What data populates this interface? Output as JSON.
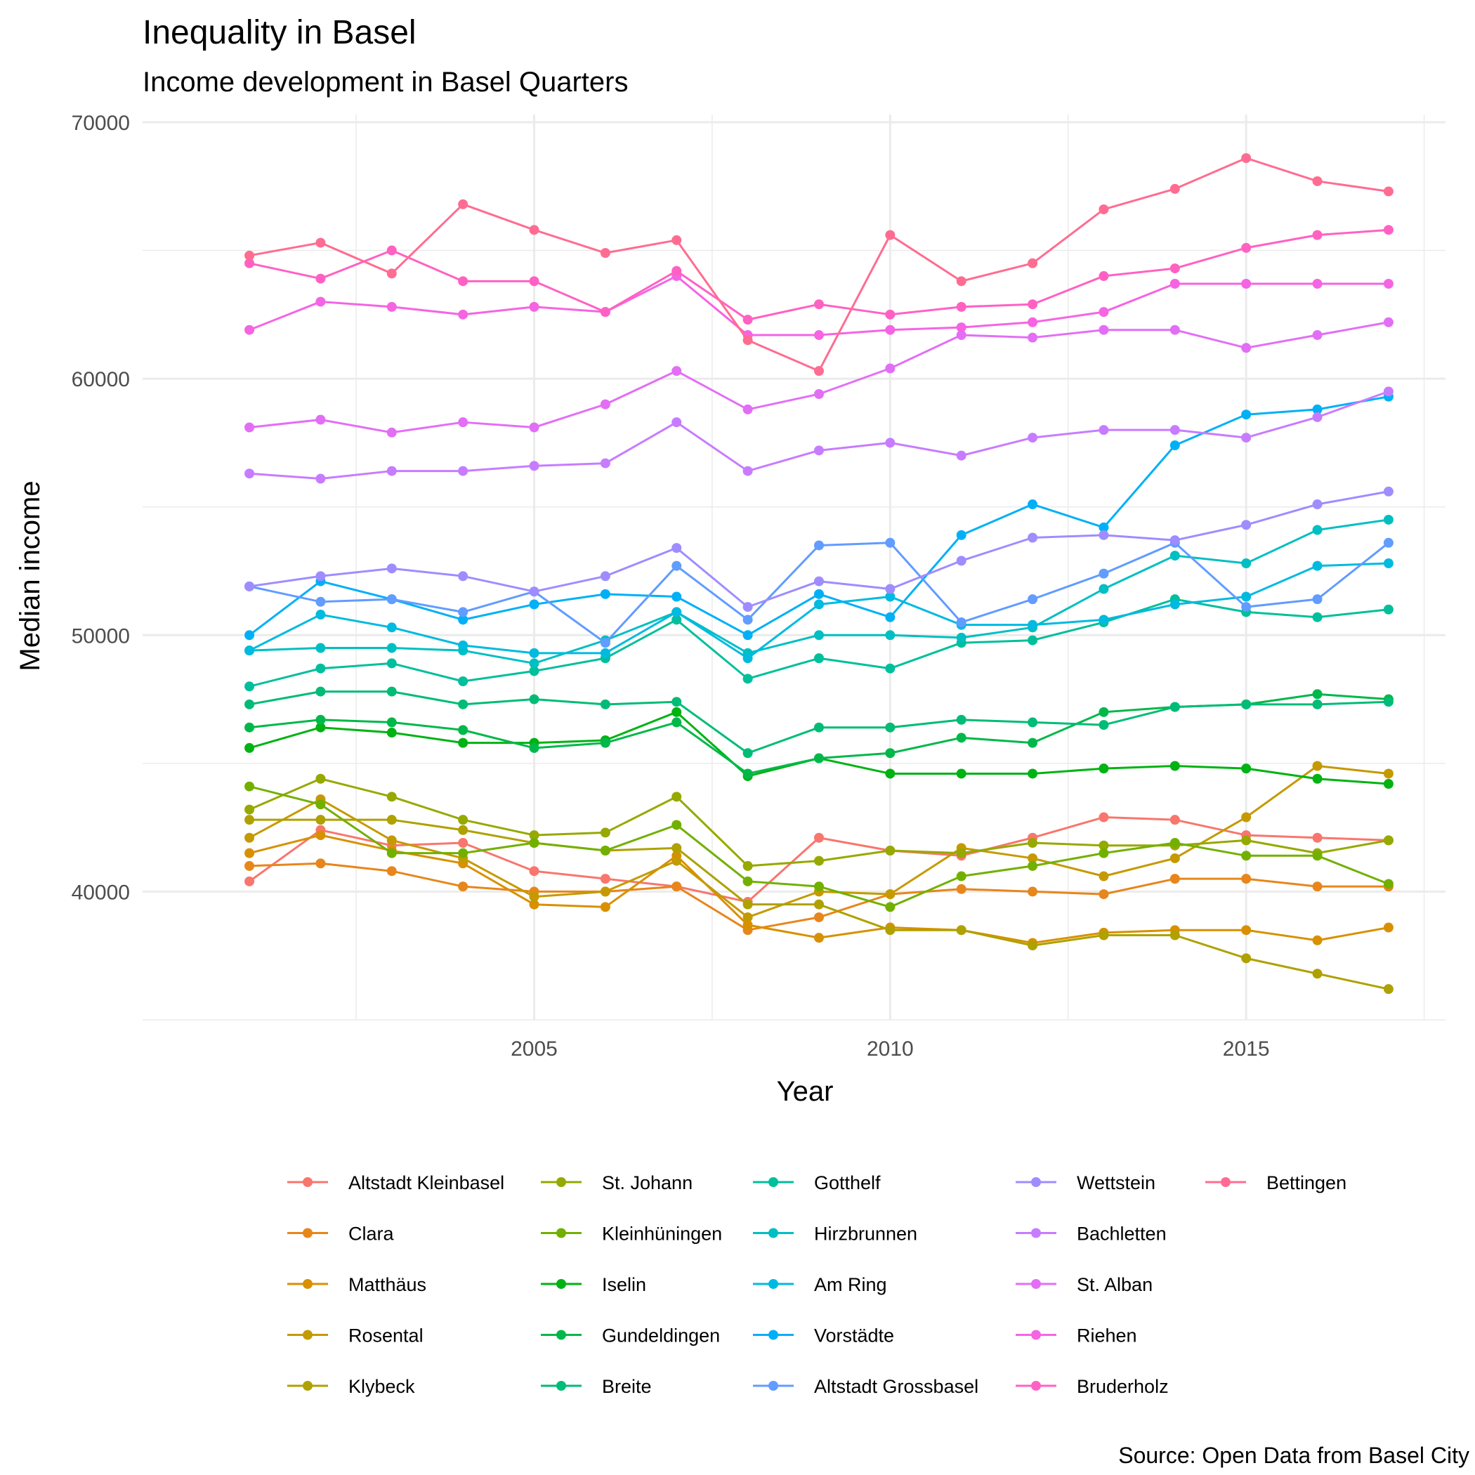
{
  "chart_data": {
    "type": "line",
    "title": "Inequality in Basel",
    "subtitle": "Income development in Basel Quarters",
    "xlabel": "Year",
    "ylabel": "Median income",
    "caption": "Source: Open Data from Basel City",
    "xlim": [
      1999.5,
      2017.8
    ],
    "ylim": [
      35000,
      70300
    ],
    "x_ticks": [
      2005,
      2010,
      2015
    ],
    "y_ticks": [
      40000,
      50000,
      60000,
      70000
    ],
    "grid": true,
    "legend_position": "bottom",
    "x": [
      2001,
      2002,
      2003,
      2004,
      2005,
      2006,
      2007,
      2008,
      2009,
      2010,
      2011,
      2012,
      2013,
      2014,
      2015,
      2016,
      2017
    ],
    "series": [
      {
        "name": "Altstadt Kleinbasel",
        "color": "#F8766D",
        "values": [
          40400,
          42400,
          41800,
          41900,
          40800,
          40500,
          40200,
          39600,
          42100,
          41600,
          41400,
          42100,
          42900,
          42800,
          42200,
          42100,
          42000
        ]
      },
      {
        "name": "Clara",
        "color": "#E7861B",
        "values": [
          41000,
          41100,
          40800,
          40200,
          40000,
          40000,
          40200,
          38500,
          39000,
          39900,
          40100,
          40000,
          39900,
          40500,
          40500,
          40200,
          40200
        ]
      },
      {
        "name": "Matthäus",
        "color": "#D89000",
        "values": [
          41500,
          42200,
          41600,
          41100,
          39500,
          39400,
          41400,
          38700,
          38200,
          38600,
          38500,
          38000,
          38400,
          38500,
          38500,
          38100,
          38600
        ]
      },
      {
        "name": "Rosental",
        "color": "#C49A00",
        "values": [
          42100,
          43600,
          42000,
          41300,
          39800,
          40000,
          41200,
          39000,
          40000,
          39900,
          41700,
          41300,
          40600,
          41300,
          42900,
          44900,
          44600
        ]
      },
      {
        "name": "Klybeck",
        "color": "#AFA100",
        "values": [
          42800,
          42800,
          42800,
          42400,
          41900,
          41600,
          41700,
          39500,
          39500,
          38500,
          38500,
          37900,
          38300,
          38300,
          37400,
          36800,
          36200
        ]
      },
      {
        "name": "St. Johann",
        "color": "#96A900",
        "values": [
          43200,
          44400,
          43700,
          42800,
          42200,
          42300,
          43700,
          41000,
          41200,
          41600,
          41500,
          41900,
          41800,
          41800,
          42000,
          41500,
          42000
        ]
      },
      {
        "name": "Kleinhüningen",
        "color": "#72B000",
        "values": [
          44100,
          43400,
          41500,
          41500,
          41900,
          41600,
          42600,
          40400,
          40200,
          39400,
          40600,
          41000,
          41500,
          41900,
          41400,
          41400,
          40300
        ]
      },
      {
        "name": "Iselin",
        "color": "#00B312",
        "values": [
          45600,
          46400,
          46200,
          45800,
          45800,
          45900,
          47000,
          44500,
          45200,
          44600,
          44600,
          44600,
          44800,
          44900,
          44800,
          44400,
          44200
        ]
      },
      {
        "name": "Gundeldingen",
        "color": "#00B84A",
        "values": [
          46400,
          46700,
          46600,
          46300,
          45600,
          45800,
          46600,
          44600,
          45200,
          45400,
          46000,
          45800,
          47000,
          47200,
          47300,
          47700,
          47500
        ]
      },
      {
        "name": "Breite",
        "color": "#00BC77",
        "values": [
          47300,
          47800,
          47800,
          47300,
          47500,
          47300,
          47400,
          45400,
          46400,
          46400,
          46700,
          46600,
          46500,
          47200,
          47300,
          47300,
          47400
        ]
      },
      {
        "name": "Gotthelf",
        "color": "#00BF9C",
        "values": [
          48000,
          48700,
          48900,
          48200,
          48600,
          49100,
          50600,
          48300,
          49100,
          48700,
          49700,
          49800,
          50500,
          51400,
          50900,
          50700,
          51000
        ]
      },
      {
        "name": "Hirzbrunnen",
        "color": "#00BFC2",
        "values": [
          49400,
          49500,
          49500,
          49400,
          48900,
          49800,
          50900,
          49300,
          50000,
          50000,
          49900,
          50300,
          51800,
          53100,
          52800,
          54100,
          54500
        ]
      },
      {
        "name": "Am Ring",
        "color": "#00BAE0",
        "values": [
          49400,
          50800,
          50300,
          49600,
          49300,
          49300,
          50900,
          49100,
          51200,
          51500,
          50400,
          50400,
          50600,
          51200,
          51500,
          52700,
          52800
        ]
      },
      {
        "name": "Vorstädte",
        "color": "#00B0F6",
        "values": [
          50000,
          52100,
          51400,
          50600,
          51200,
          51600,
          51500,
          50000,
          51600,
          50700,
          53900,
          55100,
          54200,
          57400,
          58600,
          58800,
          59300
        ]
      },
      {
        "name": "Altstadt Grossbasel",
        "color": "#619CFF",
        "values": [
          51900,
          51300,
          51400,
          50900,
          51700,
          49700,
          52700,
          50600,
          53500,
          53600,
          50500,
          51400,
          52400,
          53600,
          51100,
          51400,
          53600
        ]
      },
      {
        "name": "Wettstein",
        "color": "#9F8CFF",
        "values": [
          51900,
          52300,
          52600,
          52300,
          51700,
          52300,
          53400,
          51100,
          52100,
          51800,
          52900,
          53800,
          53900,
          53700,
          54300,
          55100,
          55600
        ]
      },
      {
        "name": "Bachletten",
        "color": "#C77CFF",
        "values": [
          56300,
          56100,
          56400,
          56400,
          56600,
          56700,
          58300,
          56400,
          57200,
          57500,
          57000,
          57700,
          58000,
          58000,
          57700,
          58500,
          59500
        ]
      },
      {
        "name": "St. Alban",
        "color": "#E36EF6",
        "values": [
          58100,
          58400,
          57900,
          58300,
          58100,
          59000,
          60300,
          58800,
          59400,
          60400,
          61700,
          61600,
          61900,
          61900,
          61200,
          61700,
          62200
        ]
      },
      {
        "name": "Riehen",
        "color": "#F564E3",
        "values": [
          61900,
          63000,
          62800,
          62500,
          62800,
          62600,
          64000,
          61700,
          61700,
          61900,
          62000,
          62200,
          62600,
          63700,
          63700,
          63700,
          63700
        ]
      },
      {
        "name": "Bruderholz",
        "color": "#FF61C3",
        "values": [
          64500,
          63900,
          65000,
          63800,
          63800,
          62600,
          64200,
          62300,
          62900,
          62500,
          62800,
          62900,
          64000,
          64300,
          65100,
          65600,
          65800
        ]
      },
      {
        "name": "Bettingen",
        "color": "#FF6C91",
        "values": [
          64800,
          65300,
          64100,
          66800,
          65800,
          64900,
          65400,
          61500,
          60300,
          65600,
          63800,
          64500,
          66600,
          67400,
          68600,
          67700,
          67300
        ]
      }
    ]
  }
}
